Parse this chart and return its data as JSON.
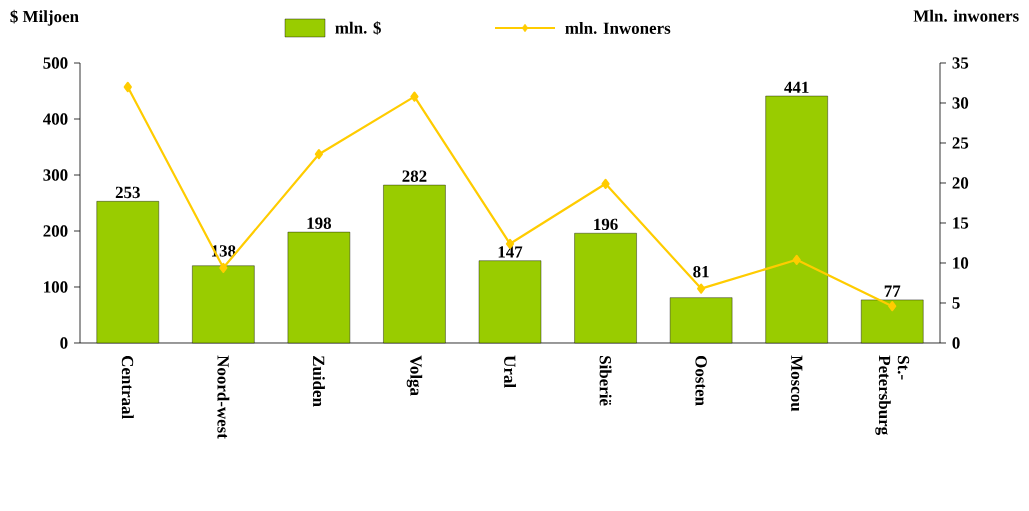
{
  "chart_data": {
    "type": "bar",
    "categories": [
      "Centraal",
      "Noord-west",
      "Zuiden",
      "Volga",
      "Ural",
      "Siberië",
      "Oosten",
      "Moscou",
      "St.-Petersburg"
    ],
    "series": [
      {
        "name": "mln. $",
        "color": "#99cc00",
        "values": [
          253,
          138,
          198,
          282,
          147,
          196,
          81,
          441,
          77
        ],
        "value_labels": [
          "253",
          "138",
          "198",
          "282",
          "147",
          "196",
          "81",
          "441",
          "77"
        ]
      },
      {
        "name": "mln. Inwoners",
        "type": "line",
        "axis": "y2",
        "color": "#ffcc00",
        "marker": "diamond",
        "values": [
          32,
          9.4,
          23.6,
          30.8,
          12.4,
          19.9,
          6.8,
          10.4,
          4.6
        ]
      }
    ],
    "ylabel": "$ Miljoen",
    "y2label": "Mln. inwoners",
    "ylim": [
      0,
      500
    ],
    "yticks": [
      0,
      100,
      200,
      300,
      400,
      500
    ],
    "y2lim": [
      0,
      35
    ],
    "y2ticks": [
      0,
      5,
      10,
      15,
      20,
      25,
      30,
      35
    ],
    "legend": "top"
  }
}
